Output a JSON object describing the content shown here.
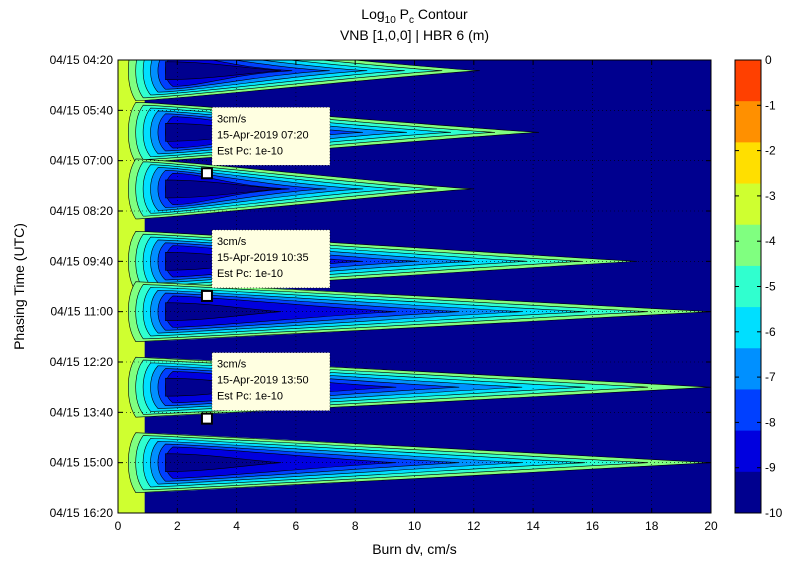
{
  "chart_data": {
    "type": "heatmap",
    "title": {
      "prefix": "Log",
      "sub1": "10",
      "mid": " P",
      "sub2": "c",
      "suffix": " Contour"
    },
    "subtitle": "VNB [1,0,0] | HBR 6 (m)",
    "xlabel": "Burn dv, cm/s",
    "ylabel": "Phasing Time (UTC)",
    "x_ticks": [
      "0",
      "2",
      "4",
      "6",
      "8",
      "10",
      "12",
      "14",
      "16",
      "18",
      "20"
    ],
    "xlim": [
      0,
      20
    ],
    "y_ticks": [
      "04/15 04:20",
      "04/15 05:40",
      "04/15 07:00",
      "04/15 08:20",
      "04/15 09:40",
      "04/15 11:00",
      "04/15 12:20",
      "04/15 13:40",
      "04/15 15:00",
      "04/15 16:20"
    ],
    "ylim": [
      "04/15 04:20",
      "04/15 16:20"
    ],
    "grid": true,
    "colorbar": {
      "ticks": [
        "0",
        "-1",
        "-2",
        "-3",
        "-4",
        "-5",
        "-6",
        "-7",
        "-8",
        "-9",
        "-10"
      ],
      "range": [
        -10,
        0
      ],
      "colors": [
        "#00008f",
        "#0000df",
        "#0040ff",
        "#0090ff",
        "#00dfff",
        "#30ffcf",
        "#80ff80",
        "#cfff30",
        "#ffdf00",
        "#ff9000",
        "#ff4000"
      ]
    },
    "fill_levels": {
      "base": "#00008f",
      "left_edge": "#cfff30"
    },
    "lobes": [
      {
        "center_time": "04/15 04:37",
        "reach_dv": 12.2,
        "lobe_id": 0
      },
      {
        "center_time": "04/15 06:15",
        "reach_dv": 14.2,
        "lobe_id": 1
      },
      {
        "center_time": "04/15 07:45",
        "reach_dv": 12.0,
        "lobe_id": 2
      },
      {
        "center_time": "04/15 09:40",
        "reach_dv": 17.5,
        "lobe_id": 3
      },
      {
        "center_time": "04/15 11:00",
        "reach_dv": 20.0,
        "lobe_id": 4
      },
      {
        "center_time": "04/15 13:00",
        "reach_dv": 20.0,
        "lobe_id": 5
      },
      {
        "center_time": "04/15 15:00",
        "reach_dv": 20.0,
        "lobe_id": 6
      }
    ],
    "annotations": [
      {
        "marker": {
          "x": 3,
          "y": "04/15 07:20"
        },
        "lines": [
          "3cm/s",
          "15-Apr-2019 07:20",
          "Est Pc: 1e-10"
        ]
      },
      {
        "marker": {
          "x": 3,
          "y": "04/15 10:35"
        },
        "lines": [
          "3cm/s",
          "15-Apr-2019 10:35",
          "Est Pc: 1e-10"
        ]
      },
      {
        "marker": {
          "x": 3,
          "y": "04/15 13:50"
        },
        "lines": [
          "3cm/s",
          "15-Apr-2019 13:50",
          "Est Pc: 1e-10"
        ]
      }
    ]
  }
}
